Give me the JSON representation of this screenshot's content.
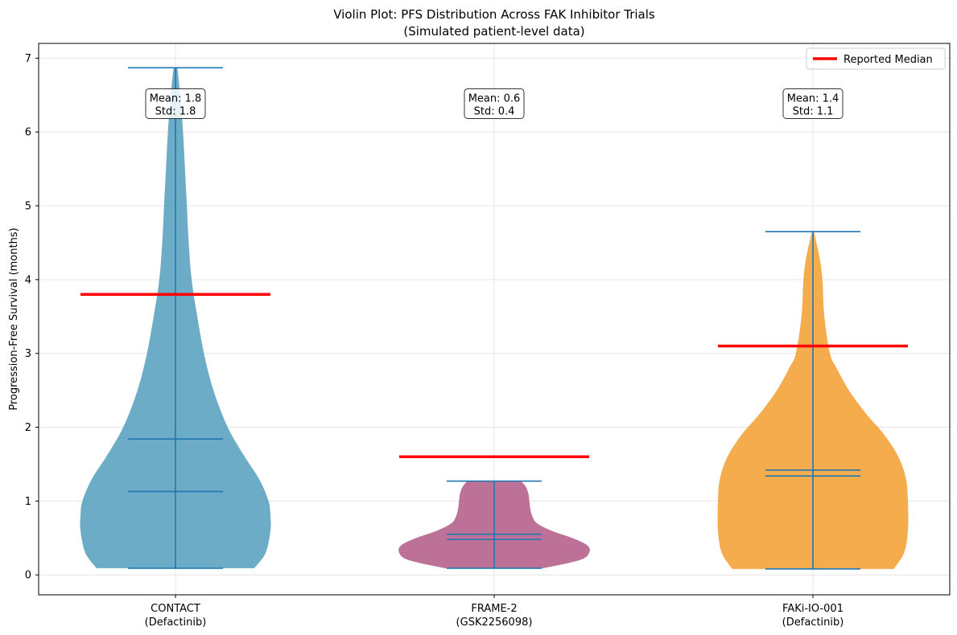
{
  "chart_data": {
    "type": "violin",
    "title": "Violin Plot: PFS Distribution Across FAK Inhibitor Trials",
    "subtitle": "(Simulated patient-level data)",
    "ylabel": "Progression-Free Survival (months)",
    "xlabel": "",
    "ylim": [
      -0.27,
      7.2
    ],
    "yticks": [
      "0",
      "1",
      "2",
      "3",
      "4",
      "5",
      "6",
      "7"
    ],
    "grid": true,
    "legend": {
      "placement": "top-right",
      "entries": [
        {
          "label": "Reported Median",
          "color": "#ff0000"
        }
      ]
    },
    "colors": {
      "line": "#1f77b4",
      "median_marker": "#ff0000"
    },
    "categories": [
      {
        "label_line1": "CONTACT",
        "label_line2": "(Defactinib)",
        "color": "#4d9aba",
        "min": 0.09,
        "max": 6.87,
        "mean": 1.84,
        "median": 1.13,
        "reported_median": 3.8,
        "annot_mean": "Mean: 1.8",
        "annot_std": "Std: 1.8",
        "density": [
          [
            0.09,
            0.83
          ],
          [
            0.3,
            0.95
          ],
          [
            0.6,
            1.0
          ],
          [
            0.8,
            1.0
          ],
          [
            1.0,
            0.98
          ],
          [
            1.3,
            0.88
          ],
          [
            1.6,
            0.73
          ],
          [
            2.0,
            0.55
          ],
          [
            2.5,
            0.4
          ],
          [
            3.0,
            0.3
          ],
          [
            3.5,
            0.23
          ],
          [
            4.0,
            0.17
          ],
          [
            4.5,
            0.14
          ],
          [
            5.0,
            0.12
          ],
          [
            5.5,
            0.1
          ],
          [
            6.0,
            0.08
          ],
          [
            6.5,
            0.05
          ],
          [
            6.87,
            0.02
          ]
        ]
      },
      {
        "label_line1": "FRAME-2",
        "label_line2": "(GSK2256098)",
        "color": "#b0527f",
        "min": 0.09,
        "max": 1.27,
        "mean": 0.55,
        "median": 0.48,
        "reported_median": 1.6,
        "annot_mean": "Mean: 0.6",
        "annot_std": "Std: 0.4",
        "density": [
          [
            0.09,
            0.52
          ],
          [
            0.2,
            0.9
          ],
          [
            0.3,
            1.0
          ],
          [
            0.4,
            0.98
          ],
          [
            0.5,
            0.82
          ],
          [
            0.6,
            0.6
          ],
          [
            0.7,
            0.45
          ],
          [
            0.8,
            0.4
          ],
          [
            0.9,
            0.38
          ],
          [
            1.0,
            0.37
          ],
          [
            1.1,
            0.36
          ],
          [
            1.2,
            0.33
          ],
          [
            1.27,
            0.28
          ]
        ]
      },
      {
        "label_line1": "FAKi-IO-001",
        "label_line2": "(Defactinib)",
        "color": "#f29a25",
        "min": 0.08,
        "max": 4.65,
        "mean": 1.42,
        "median": 1.34,
        "reported_median": 3.1,
        "annot_mean": "Mean: 1.4",
        "annot_std": "Std: 1.1",
        "density": [
          [
            0.08,
            0.85
          ],
          [
            0.3,
            0.96
          ],
          [
            0.6,
            1.0
          ],
          [
            1.0,
            1.0
          ],
          [
            1.3,
            0.98
          ],
          [
            1.6,
            0.9
          ],
          [
            1.9,
            0.75
          ],
          [
            2.2,
            0.55
          ],
          [
            2.5,
            0.38
          ],
          [
            2.8,
            0.25
          ],
          [
            3.0,
            0.18
          ],
          [
            3.5,
            0.12
          ],
          [
            4.0,
            0.1
          ],
          [
            4.3,
            0.07
          ],
          [
            4.65,
            0.01
          ]
        ]
      }
    ]
  }
}
